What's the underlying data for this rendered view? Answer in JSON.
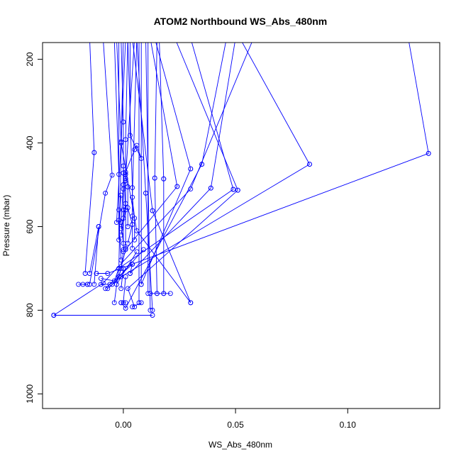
{
  "chart_data": {
    "type": "scatter",
    "mode": "lines+markers",
    "title": "ATOM2 Northbound WS_Abs_480nm",
    "xlabel": "WS_Abs_480nm",
    "ylabel": "Pressure (mbar)",
    "xlim": [
      -0.036,
      0.141
    ],
    "ylim": [
      1035,
      160
    ],
    "y_reversed": true,
    "xticks": [
      0.0,
      0.05,
      0.1
    ],
    "xtick_labels": [
      "0.00",
      "0.05",
      "0.10"
    ],
    "yticks": [
      200,
      400,
      600,
      800,
      1000
    ],
    "ytick_labels": [
      "200",
      "400",
      "600",
      "800",
      "1000"
    ],
    "grid": false,
    "series_color": "#0000ff",
    "series": [
      {
        "points": [
          {
            "x": 0.03,
            "y": 782
          },
          {
            "x": 0.006,
            "y": 610
          },
          {
            "x": -0.001,
            "y": 400
          },
          {
            "x": 0.001,
            "y": 150
          }
        ]
      },
      {
        "points": [
          {
            "x": -0.031,
            "y": 812
          },
          {
            "x": 0.013,
            "y": 812
          }
        ]
      },
      {
        "points": [
          {
            "x": -0.031,
            "y": 812
          },
          {
            "x": -0.009,
            "y": 735
          },
          {
            "x": 0.03,
            "y": 510
          },
          {
            "x": 0.058,
            "y": 150
          }
        ]
      },
      {
        "points": [
          {
            "x": 0.136,
            "y": 425
          },
          {
            "x": 0.127,
            "y": 150
          }
        ]
      },
      {
        "points": [
          {
            "x": 0.136,
            "y": 425
          },
          {
            "x": -0.007,
            "y": 712
          },
          {
            "x": -0.012,
            "y": 712
          }
        ]
      },
      {
        "points": [
          {
            "x": 0.083,
            "y": 451
          },
          {
            "x": 0.052,
            "y": 150
          }
        ]
      },
      {
        "points": [
          {
            "x": 0.083,
            "y": 451
          },
          {
            "x": -0.001,
            "y": 720
          },
          {
            "x": -0.007,
            "y": 748
          }
        ]
      },
      {
        "points": [
          {
            "x": -0.013,
            "y": 423
          },
          {
            "x": -0.015,
            "y": 150
          }
        ]
      },
      {
        "points": [
          {
            "x": -0.013,
            "y": 423
          },
          {
            "x": -0.017,
            "y": 712
          }
        ]
      },
      {
        "points": [
          {
            "x": -0.018,
            "y": 738
          },
          {
            "x": -0.016,
            "y": 738
          }
        ]
      },
      {
        "points": [
          {
            "x": -0.015,
            "y": 738
          },
          {
            "x": -0.008,
            "y": 520
          },
          {
            "x": -0.005,
            "y": 477
          },
          {
            "x": -0.009,
            "y": 150
          }
        ]
      },
      {
        "points": [
          {
            "x": -0.011,
            "y": 600
          },
          {
            "x": -0.013,
            "y": 738
          }
        ]
      },
      {
        "points": [
          {
            "x": -0.015,
            "y": 712
          },
          {
            "x": -0.011,
            "y": 600
          }
        ]
      },
      {
        "points": [
          {
            "x": -0.02,
            "y": 738
          },
          {
            "x": -0.016,
            "y": 738
          }
        ]
      },
      {
        "points": [
          {
            "x": -0.01,
            "y": 724
          },
          {
            "x": -0.004,
            "y": 730
          },
          {
            "x": -0.002,
            "y": 700
          },
          {
            "x": 0.0,
            "y": 150
          }
        ]
      },
      {
        "points": [
          {
            "x": -0.004,
            "y": 782
          },
          {
            "x": -0.002,
            "y": 700
          },
          {
            "x": 0.049,
            "y": 511
          }
        ]
      },
      {
        "points": [
          {
            "x": 0.049,
            "y": 511
          },
          {
            "x": 0.03,
            "y": 150
          }
        ]
      },
      {
        "points": [
          {
            "x": 0.051,
            "y": 513
          },
          {
            "x": 0.023,
            "y": 150
          }
        ]
      },
      {
        "points": [
          {
            "x": 0.051,
            "y": 513
          },
          {
            "x": 0.002,
            "y": 748
          },
          {
            "x": 0.005,
            "y": 792
          }
        ]
      },
      {
        "points": [
          {
            "x": 0.039,
            "y": 508
          },
          {
            "x": 0.05,
            "y": 150
          }
        ]
      },
      {
        "points": [
          {
            "x": 0.039,
            "y": 508
          },
          {
            "x": 0.003,
            "y": 712
          }
        ]
      },
      {
        "points": [
          {
            "x": 0.035,
            "y": 451
          },
          {
            "x": 0.046,
            "y": 150
          }
        ]
      },
      {
        "points": [
          {
            "x": 0.035,
            "y": 451
          },
          {
            "x": 0.001,
            "y": 795
          },
          {
            "x": -0.001,
            "y": 782
          }
        ]
      },
      {
        "points": [
          {
            "x": 0.03,
            "y": 462
          },
          {
            "x": 0.014,
            "y": 150
          }
        ]
      },
      {
        "points": [
          {
            "x": 0.03,
            "y": 462
          },
          {
            "x": 0.008,
            "y": 738
          }
        ]
      },
      {
        "points": [
          {
            "x": 0.024,
            "y": 504
          },
          {
            "x": 0.012,
            "y": 150
          }
        ]
      },
      {
        "points": [
          {
            "x": 0.024,
            "y": 504
          },
          {
            "x": 0.001,
            "y": 655
          },
          {
            "x": -0.002,
            "y": 720
          }
        ]
      },
      {
        "points": [
          {
            "x": 0.018,
            "y": 486
          },
          {
            "x": 0.016,
            "y": 150
          }
        ]
      },
      {
        "points": [
          {
            "x": 0.018,
            "y": 486
          },
          {
            "x": 0.018,
            "y": 760
          }
        ]
      },
      {
        "points": [
          {
            "x": 0.014,
            "y": 484
          },
          {
            "x": 0.015,
            "y": 150
          }
        ]
      },
      {
        "points": [
          {
            "x": 0.014,
            "y": 484
          },
          {
            "x": 0.015,
            "y": 760
          }
        ]
      },
      {
        "points": [
          {
            "x": 0.01,
            "y": 520
          },
          {
            "x": 0.006,
            "y": 150
          }
        ]
      },
      {
        "points": [
          {
            "x": 0.01,
            "y": 520
          },
          {
            "x": 0.013,
            "y": 800
          }
        ]
      },
      {
        "points": [
          {
            "x": 0.013,
            "y": 562
          },
          {
            "x": 0.004,
            "y": 150
          }
        ]
      },
      {
        "points": [
          {
            "x": 0.013,
            "y": 562
          },
          {
            "x": 0.03,
            "y": 782
          }
        ]
      },
      {
        "points": [
          {
            "x": 0.021,
            "y": 760
          },
          {
            "x": 0.018,
            "y": 760
          },
          {
            "x": 0.015,
            "y": 760
          },
          {
            "x": 0.012,
            "y": 760
          }
        ]
      },
      {
        "points": [
          {
            "x": 0.007,
            "y": 782
          },
          {
            "x": 0.007,
            "y": 150
          }
        ]
      },
      {
        "points": [
          {
            "x": 0.012,
            "y": 800
          },
          {
            "x": 0.01,
            "y": 150
          }
        ]
      },
      {
        "points": [
          {
            "x": 0.001,
            "y": 470
          },
          {
            "x": 0.005,
            "y": 416
          },
          {
            "x": 0.006,
            "y": 406
          },
          {
            "x": 0.008,
            "y": 437
          },
          {
            "x": 0.003,
            "y": 382
          },
          {
            "x": 0.003,
            "y": 150
          }
        ]
      },
      {
        "points": [
          {
            "x": 0.001,
            "y": 490
          },
          {
            "x": 0.001,
            "y": 392
          },
          {
            "x": 0.002,
            "y": 150
          }
        ]
      },
      {
        "points": [
          {
            "x": 0.0,
            "y": 560
          },
          {
            "x": 0.0,
            "y": 350
          },
          {
            "x": -0.001,
            "y": 150
          }
        ]
      },
      {
        "points": [
          {
            "x": -0.002,
            "y": 560
          },
          {
            "x": -0.002,
            "y": 150
          }
        ]
      },
      {
        "points": [
          {
            "x": -0.003,
            "y": 590
          },
          {
            "x": -0.001,
            "y": 397
          },
          {
            "x": -0.003,
            "y": 150
          }
        ]
      },
      {
        "points": [
          {
            "x": -0.002,
            "y": 632
          },
          {
            "x": -0.002,
            "y": 475
          },
          {
            "x": -0.004,
            "y": 150
          }
        ]
      },
      {
        "points": [
          {
            "x": 0.001,
            "y": 652
          },
          {
            "x": 0.001,
            "y": 485
          },
          {
            "x": 0.005,
            "y": 150
          }
        ]
      },
      {
        "points": [
          {
            "x": 0.004,
            "y": 652
          },
          {
            "x": 0.004,
            "y": 575
          },
          {
            "x": 0.004,
            "y": 507
          },
          {
            "x": 0.002,
            "y": 150
          }
        ]
      },
      {
        "points": [
          {
            "x": 0.0,
            "y": 655
          },
          {
            "x": 0.0,
            "y": 510
          },
          {
            "x": 0.0,
            "y": 472
          }
        ]
      },
      {
        "points": [
          {
            "x": 0.005,
            "y": 632
          },
          {
            "x": 0.005,
            "y": 580
          },
          {
            "x": 0.004,
            "y": 530
          },
          {
            "x": 0.006,
            "y": 150
          }
        ]
      },
      {
        "points": [
          {
            "x": -0.001,
            "y": 620
          },
          {
            "x": 0.001,
            "y": 560
          },
          {
            "x": 0.0,
            "y": 455
          }
        ]
      },
      {
        "points": [
          {
            "x": 0.002,
            "y": 600
          },
          {
            "x": 0.002,
            "y": 505
          },
          {
            "x": 0.001,
            "y": 475
          }
        ]
      },
      {
        "points": [
          {
            "x": -0.001,
            "y": 680
          },
          {
            "x": -0.002,
            "y": 585
          },
          {
            "x": -0.001,
            "y": 525
          }
        ]
      },
      {
        "points": [
          {
            "x": 0.0,
            "y": 640
          },
          {
            "x": -0.001,
            "y": 590
          },
          {
            "x": 0.0,
            "y": 500
          }
        ]
      },
      {
        "points": [
          {
            "x": 0.002,
            "y": 640
          },
          {
            "x": 0.004,
            "y": 595
          },
          {
            "x": 0.002,
            "y": 555
          }
        ]
      },
      {
        "points": [
          {
            "x": -0.001,
            "y": 605
          },
          {
            "x": 0.0,
            "y": 580
          },
          {
            "x": 0.001,
            "y": 545
          }
        ]
      },
      {
        "points": [
          {
            "x": -0.002,
            "y": 720
          },
          {
            "x": -0.001,
            "y": 700
          },
          {
            "x": 0.0,
            "y": 660
          }
        ]
      },
      {
        "points": [
          {
            "x": 0.003,
            "y": 712
          },
          {
            "x": 0.004,
            "y": 690
          }
        ]
      },
      {
        "points": [
          {
            "x": 0.0,
            "y": 782
          },
          {
            "x": 0.001,
            "y": 720
          }
        ]
      },
      {
        "points": [
          {
            "x": -0.001,
            "y": 748
          },
          {
            "x": 0.0,
            "y": 700
          }
        ]
      },
      {
        "points": [
          {
            "x": -0.008,
            "y": 748
          },
          {
            "x": 0.004,
            "y": 690
          }
        ]
      },
      {
        "points": [
          {
            "x": -0.005,
            "y": 738
          },
          {
            "x": 0.009,
            "y": 655
          }
        ]
      },
      {
        "points": [
          {
            "x": -0.003,
            "y": 738
          },
          {
            "x": 0.006,
            "y": 660
          }
        ]
      },
      {
        "points": [
          {
            "x": -0.01,
            "y": 738
          },
          {
            "x": -0.006,
            "y": 738
          }
        ]
      },
      {
        "points": [
          {
            "x": 0.004,
            "y": 792
          },
          {
            "x": 0.008,
            "y": 782
          }
        ]
      },
      {
        "points": [
          {
            "x": -0.001,
            "y": 782
          },
          {
            "x": 0.001,
            "y": 782
          }
        ]
      },
      {
        "points": [
          {
            "x": 0.008,
            "y": 738
          },
          {
            "x": 0.008,
            "y": 150
          }
        ]
      },
      {
        "points": [
          {
            "x": 0.011,
            "y": 760
          },
          {
            "x": 0.011,
            "y": 150
          }
        ]
      }
    ]
  }
}
